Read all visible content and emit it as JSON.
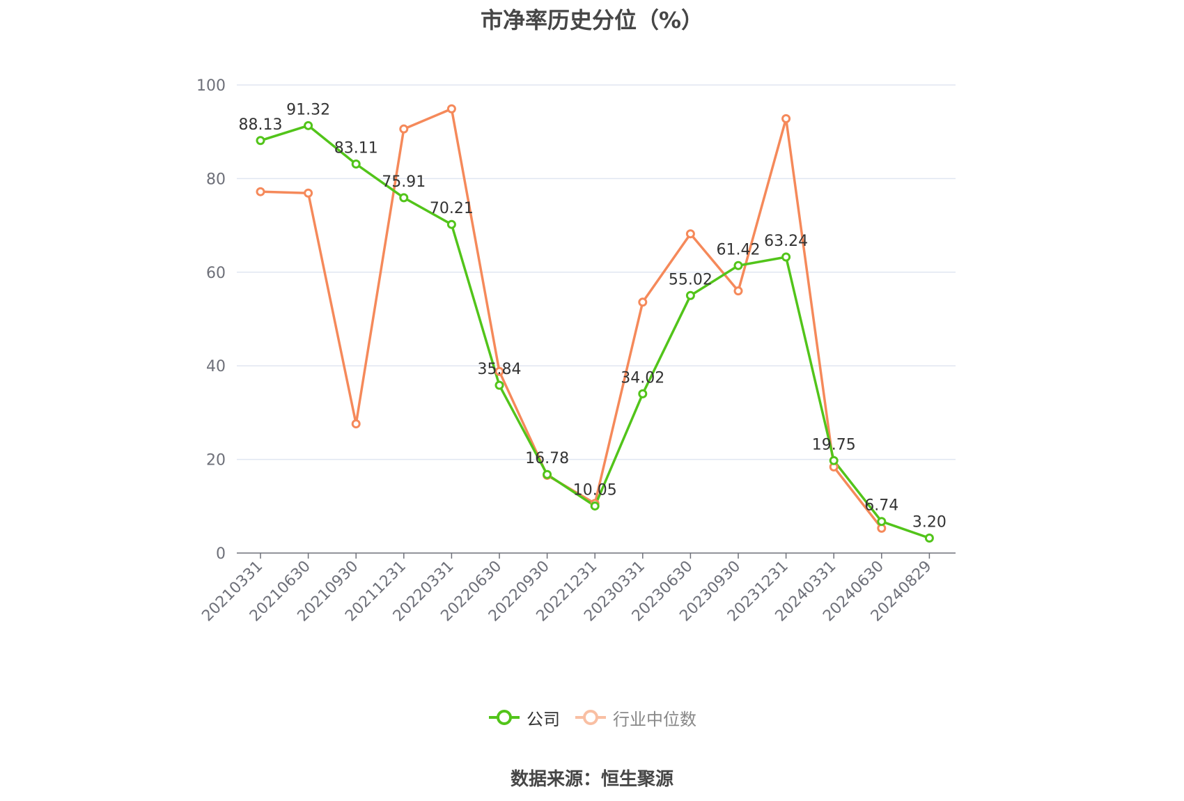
{
  "chart_data": {
    "type": "line",
    "title": "市净率历史分位（%）",
    "categories": [
      "20210331",
      "20210630",
      "20210930",
      "20211231",
      "20220331",
      "20220630",
      "20220930",
      "20221231",
      "20230331",
      "20230630",
      "20230930",
      "20231231",
      "20240331",
      "20240630",
      "20240829"
    ],
    "series": [
      {
        "name": "公司",
        "color": "#52c41a",
        "values": [
          88.13,
          91.32,
          83.11,
          75.91,
          70.21,
          35.84,
          16.78,
          10.05,
          34.02,
          55.02,
          61.42,
          63.24,
          19.75,
          6.74,
          3.2
        ],
        "labels": [
          "88.13",
          "91.32",
          "83.11",
          "75.91",
          "70.21",
          "35.84",
          "16.78",
          "10.05",
          "34.02",
          "55.02",
          "61.42",
          "63.24",
          "19.75",
          "6.74",
          "3.20"
        ]
      },
      {
        "name": "行业中位数",
        "color": "#f5895a",
        "values": [
          77.2,
          76.9,
          27.6,
          90.6,
          94.9,
          38.8,
          16.6,
          10.6,
          53.6,
          68.2,
          56.0,
          92.8,
          18.4,
          5.3,
          null
        ]
      }
    ],
    "y_ticks": [
      "0",
      "20",
      "40",
      "60",
      "80",
      "100"
    ],
    "ylim": [
      0,
      100
    ],
    "grid": true,
    "legend_position": "bottom"
  },
  "source": "数据来源：恒生聚源"
}
